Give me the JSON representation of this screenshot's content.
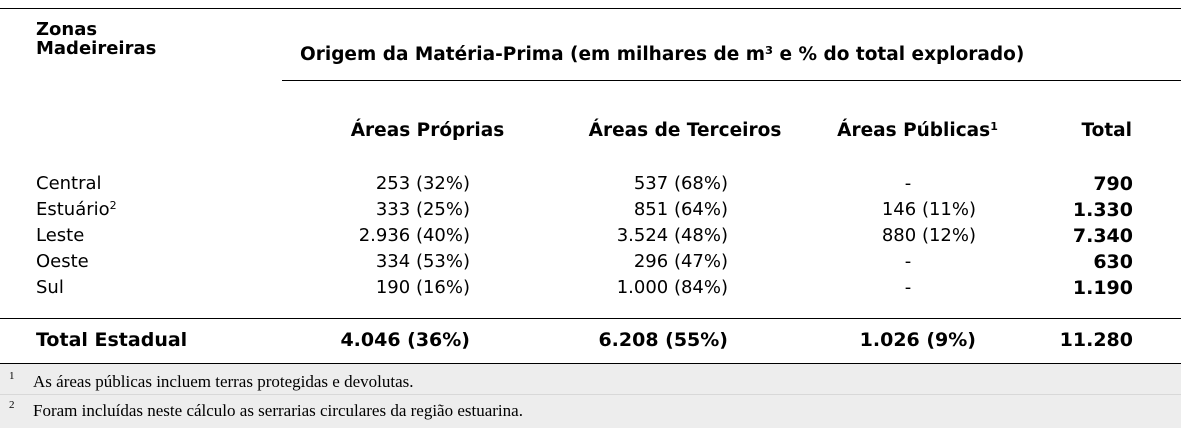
{
  "header": {
    "zonas_line1": "Zonas",
    "zonas_line2": "Madeireiras",
    "origem": "Origem da Matéria-Prima (em milhares de m³ e % do total explorado)",
    "col_proprias": "Áreas Próprias",
    "col_terceiros": "Áreas de Terceiros",
    "col_publicas": "Áreas Públicas",
    "col_publicas_sup": "1",
    "col_total": "Total"
  },
  "rows": [
    {
      "zona": "Central",
      "sup": "",
      "proprias": "253 (32%)",
      "terceiros": "537 (68%)",
      "publicas": "-",
      "total": "790"
    },
    {
      "zona": "Estuário",
      "sup": "2",
      "proprias": "333 (25%)",
      "terceiros": "851 (64%)",
      "publicas": "146 (11%)",
      "total": "1.330"
    },
    {
      "zona": "Leste",
      "sup": "",
      "proprias": "2.936 (40%)",
      "terceiros": "3.524 (48%)",
      "publicas": "880 (12%)",
      "total": "7.340"
    },
    {
      "zona": "Oeste",
      "sup": "",
      "proprias": "334 (53%)",
      "terceiros": "296 (47%)",
      "publicas": "-",
      "total": "630"
    },
    {
      "zona": "Sul",
      "sup": "",
      "proprias": "190 (16%)",
      "terceiros": "1.000 (84%)",
      "publicas": "-",
      "total": "1.190"
    }
  ],
  "total_row": {
    "label": "Total Estadual",
    "proprias": "4.046 (36%)",
    "terceiros": "6.208 (55%)",
    "publicas": "1.026 (9%)",
    "total": "11.280"
  },
  "footnotes": [
    {
      "mark": "1",
      "text": "As áreas públicas incluem terras protegidas e devolutas."
    },
    {
      "mark": "2",
      "text": "Foram incluídas neste cálculo as serrarias circulares da região estuarina."
    }
  ]
}
